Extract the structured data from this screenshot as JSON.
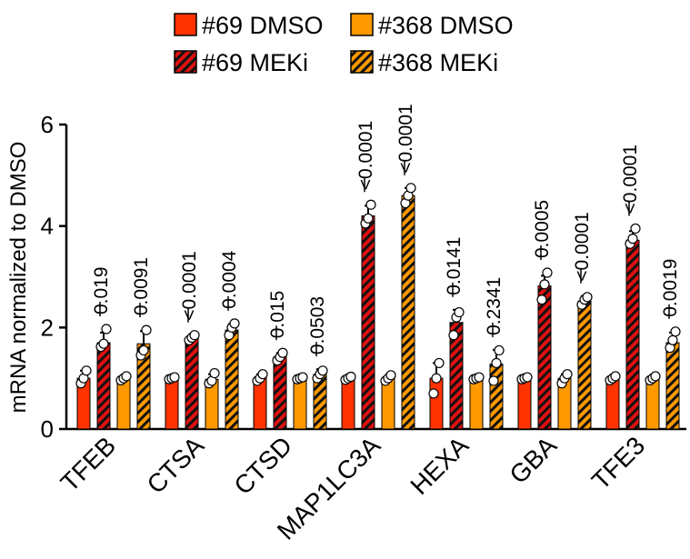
{
  "chart_data": {
    "type": "bar",
    "title": "",
    "xlabel": "",
    "ylabel": "mRNA normalized to DMSO",
    "ylim": [
      0,
      6
    ],
    "yticks": [
      "0",
      "2",
      "4",
      "6"
    ],
    "legend_position": "top",
    "categories": [
      "TFEB",
      "CTSA",
      "CTSD",
      "MAP1LC3A",
      "HEXA",
      "GBA",
      "TFE3"
    ],
    "series": [
      {
        "name": "#69 DMSO",
        "color": "#ff3300",
        "hatched": false,
        "values": [
          1.0,
          1.0,
          1.0,
          1.0,
          1.0,
          1.0,
          1.0
        ],
        "errors": [
          0.15,
          0.02,
          0.08,
          0.03,
          0.3,
          0.02,
          0.04
        ],
        "points": [
          [
            0.9,
            1.0,
            1.15
          ],
          [
            0.98,
            1.0,
            1.02
          ],
          [
            0.95,
            1.0,
            1.08
          ],
          [
            0.97,
            1.0,
            1.03
          ],
          [
            0.7,
            1.0,
            1.3
          ],
          [
            0.98,
            1.0,
            1.02
          ],
          [
            0.96,
            1.0,
            1.04
          ]
        ]
      },
      {
        "name": "#69 MEKi",
        "color": "#dd1111",
        "hatched": true,
        "values": [
          1.7,
          1.8,
          1.42,
          4.2,
          2.1,
          2.82,
          3.72
        ],
        "errors": [
          0.2,
          0.05,
          0.08,
          0.2,
          0.25,
          0.2,
          0.18
        ],
        "points": [
          [
            1.62,
            1.68,
            1.97
          ],
          [
            1.75,
            1.8,
            1.85
          ],
          [
            1.35,
            1.42,
            1.5
          ],
          [
            4.05,
            4.15,
            4.42
          ],
          [
            1.85,
            2.2,
            2.3
          ],
          [
            2.55,
            2.85,
            3.08
          ],
          [
            3.65,
            3.75,
            3.95
          ]
        ]
      },
      {
        "name": "#368 DMSO",
        "color": "#ff9900",
        "hatched": false,
        "values": [
          1.0,
          0.98,
          1.0,
          1.0,
          1.0,
          1.0,
          1.0
        ],
        "errors": [
          0.05,
          0.1,
          0.03,
          0.05,
          0.03,
          0.08,
          0.04
        ],
        "points": [
          [
            0.96,
            1.0,
            1.04
          ],
          [
            0.9,
            0.95,
            1.1
          ],
          [
            0.98,
            1.0,
            1.02
          ],
          [
            0.95,
            1.0,
            1.06
          ],
          [
            0.98,
            1.0,
            1.02
          ],
          [
            0.9,
            1.0,
            1.08
          ],
          [
            0.96,
            1.0,
            1.04
          ]
        ]
      },
      {
        "name": "#368 MEKi",
        "color": "#ff9900",
        "hatched": true,
        "values": [
          1.68,
          1.95,
          1.08,
          4.6,
          1.28,
          2.52,
          1.7
        ],
        "errors": [
          0.25,
          0.12,
          0.1,
          0.15,
          0.28,
          0.1,
          0.2
        ],
        "points": [
          [
            1.45,
            1.55,
            1.95
          ],
          [
            1.85,
            2.0,
            2.08
          ],
          [
            1.0,
            1.08,
            1.15
          ],
          [
            4.45,
            4.6,
            4.75
          ],
          [
            0.95,
            1.3,
            1.55
          ],
          [
            2.45,
            2.55,
            2.6
          ],
          [
            1.6,
            1.75,
            1.92
          ]
        ]
      }
    ],
    "annotations": [
      [
        "0.019",
        "0.0091"
      ],
      [
        "<0.0001",
        "0.0004"
      ],
      [
        "0.015",
        "0.0503"
      ],
      [
        "<0.0001",
        "<0.0001"
      ],
      [
        "0.0141",
        "0.2341"
      ],
      [
        "0.0005",
        "<0.0001"
      ],
      [
        "<0.0001",
        "0.0019"
      ]
    ]
  }
}
